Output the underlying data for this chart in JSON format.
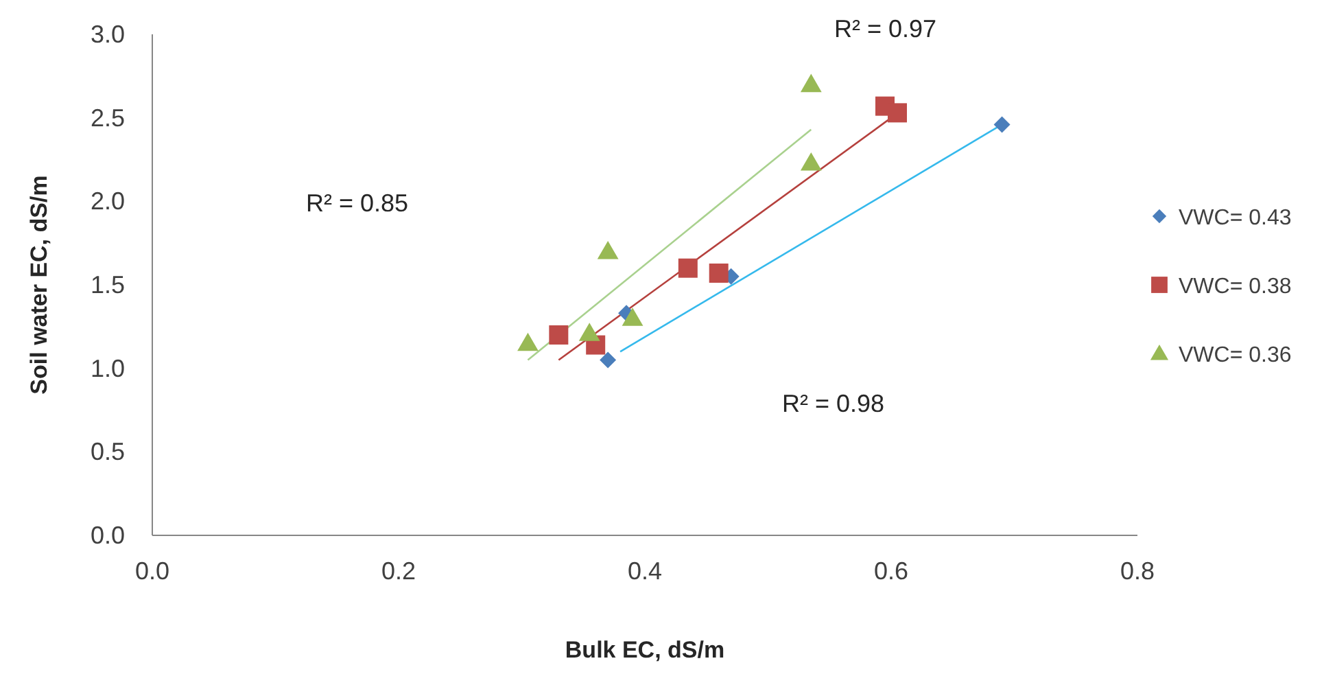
{
  "chart_data": {
    "type": "scatter",
    "xlabel": "Bulk EC, dS/m",
    "ylabel": "Soil water EC, dS/m",
    "xlim": [
      0,
      0.8
    ],
    "xticks": [
      {
        "value": 0,
        "label": "0.0"
      },
      0.2,
      0.4,
      0.6,
      0.8
    ],
    "ylim": [
      0,
      3
    ],
    "yticks": [
      {
        "value": 0,
        "label": "0.0"
      },
      0.5,
      {
        "value": 1,
        "label": "1.0"
      },
      1.5,
      {
        "value": 2,
        "label": "2.0"
      },
      2.5,
      {
        "value": 3,
        "label": "3.0"
      }
    ],
    "grid": false,
    "legend": "right",
    "series": [
      {
        "name": "VWC= 0.43",
        "color": "#4a7ebb",
        "marker": "diamond",
        "x": [
          0.37,
          0.385,
          0.47,
          0.69
        ],
        "values": [
          1.05,
          1.33,
          1.55,
          2.46
        ]
      },
      {
        "name": "VWC= 0.38",
        "color": "#be4b48",
        "marker": "square",
        "x": [
          0.33,
          0.36,
          0.435,
          0.46,
          0.595,
          0.605
        ],
        "values": [
          1.2,
          1.14,
          1.6,
          1.57,
          2.57,
          2.53
        ]
      },
      {
        "name": "VWC= 0.36",
        "color": "#98b954",
        "marker": "triangle",
        "x": [
          0.305,
          0.355,
          0.37,
          0.39,
          0.535,
          0.535
        ],
        "values": [
          1.15,
          1.21,
          1.7,
          1.3,
          2.23,
          2.7
        ]
      },
      {
        "type": "line",
        "color": "#35b9ec",
        "x": [
          0.38,
          0.69
        ],
        "values": [
          1.1,
          2.46
        ]
      },
      {
        "type": "line",
        "color": "#b5403d",
        "x": [
          0.33,
          0.6
        ],
        "values": [
          1.05,
          2.5
        ]
      },
      {
        "type": "line",
        "color": "#a9d18e",
        "x": [
          0.305,
          0.535
        ],
        "values": [
          1.05,
          2.43
        ]
      }
    ],
    "annotations": [
      "R² = 0.97",
      "R² = 0.85",
      "R² = 0.98"
    ]
  }
}
